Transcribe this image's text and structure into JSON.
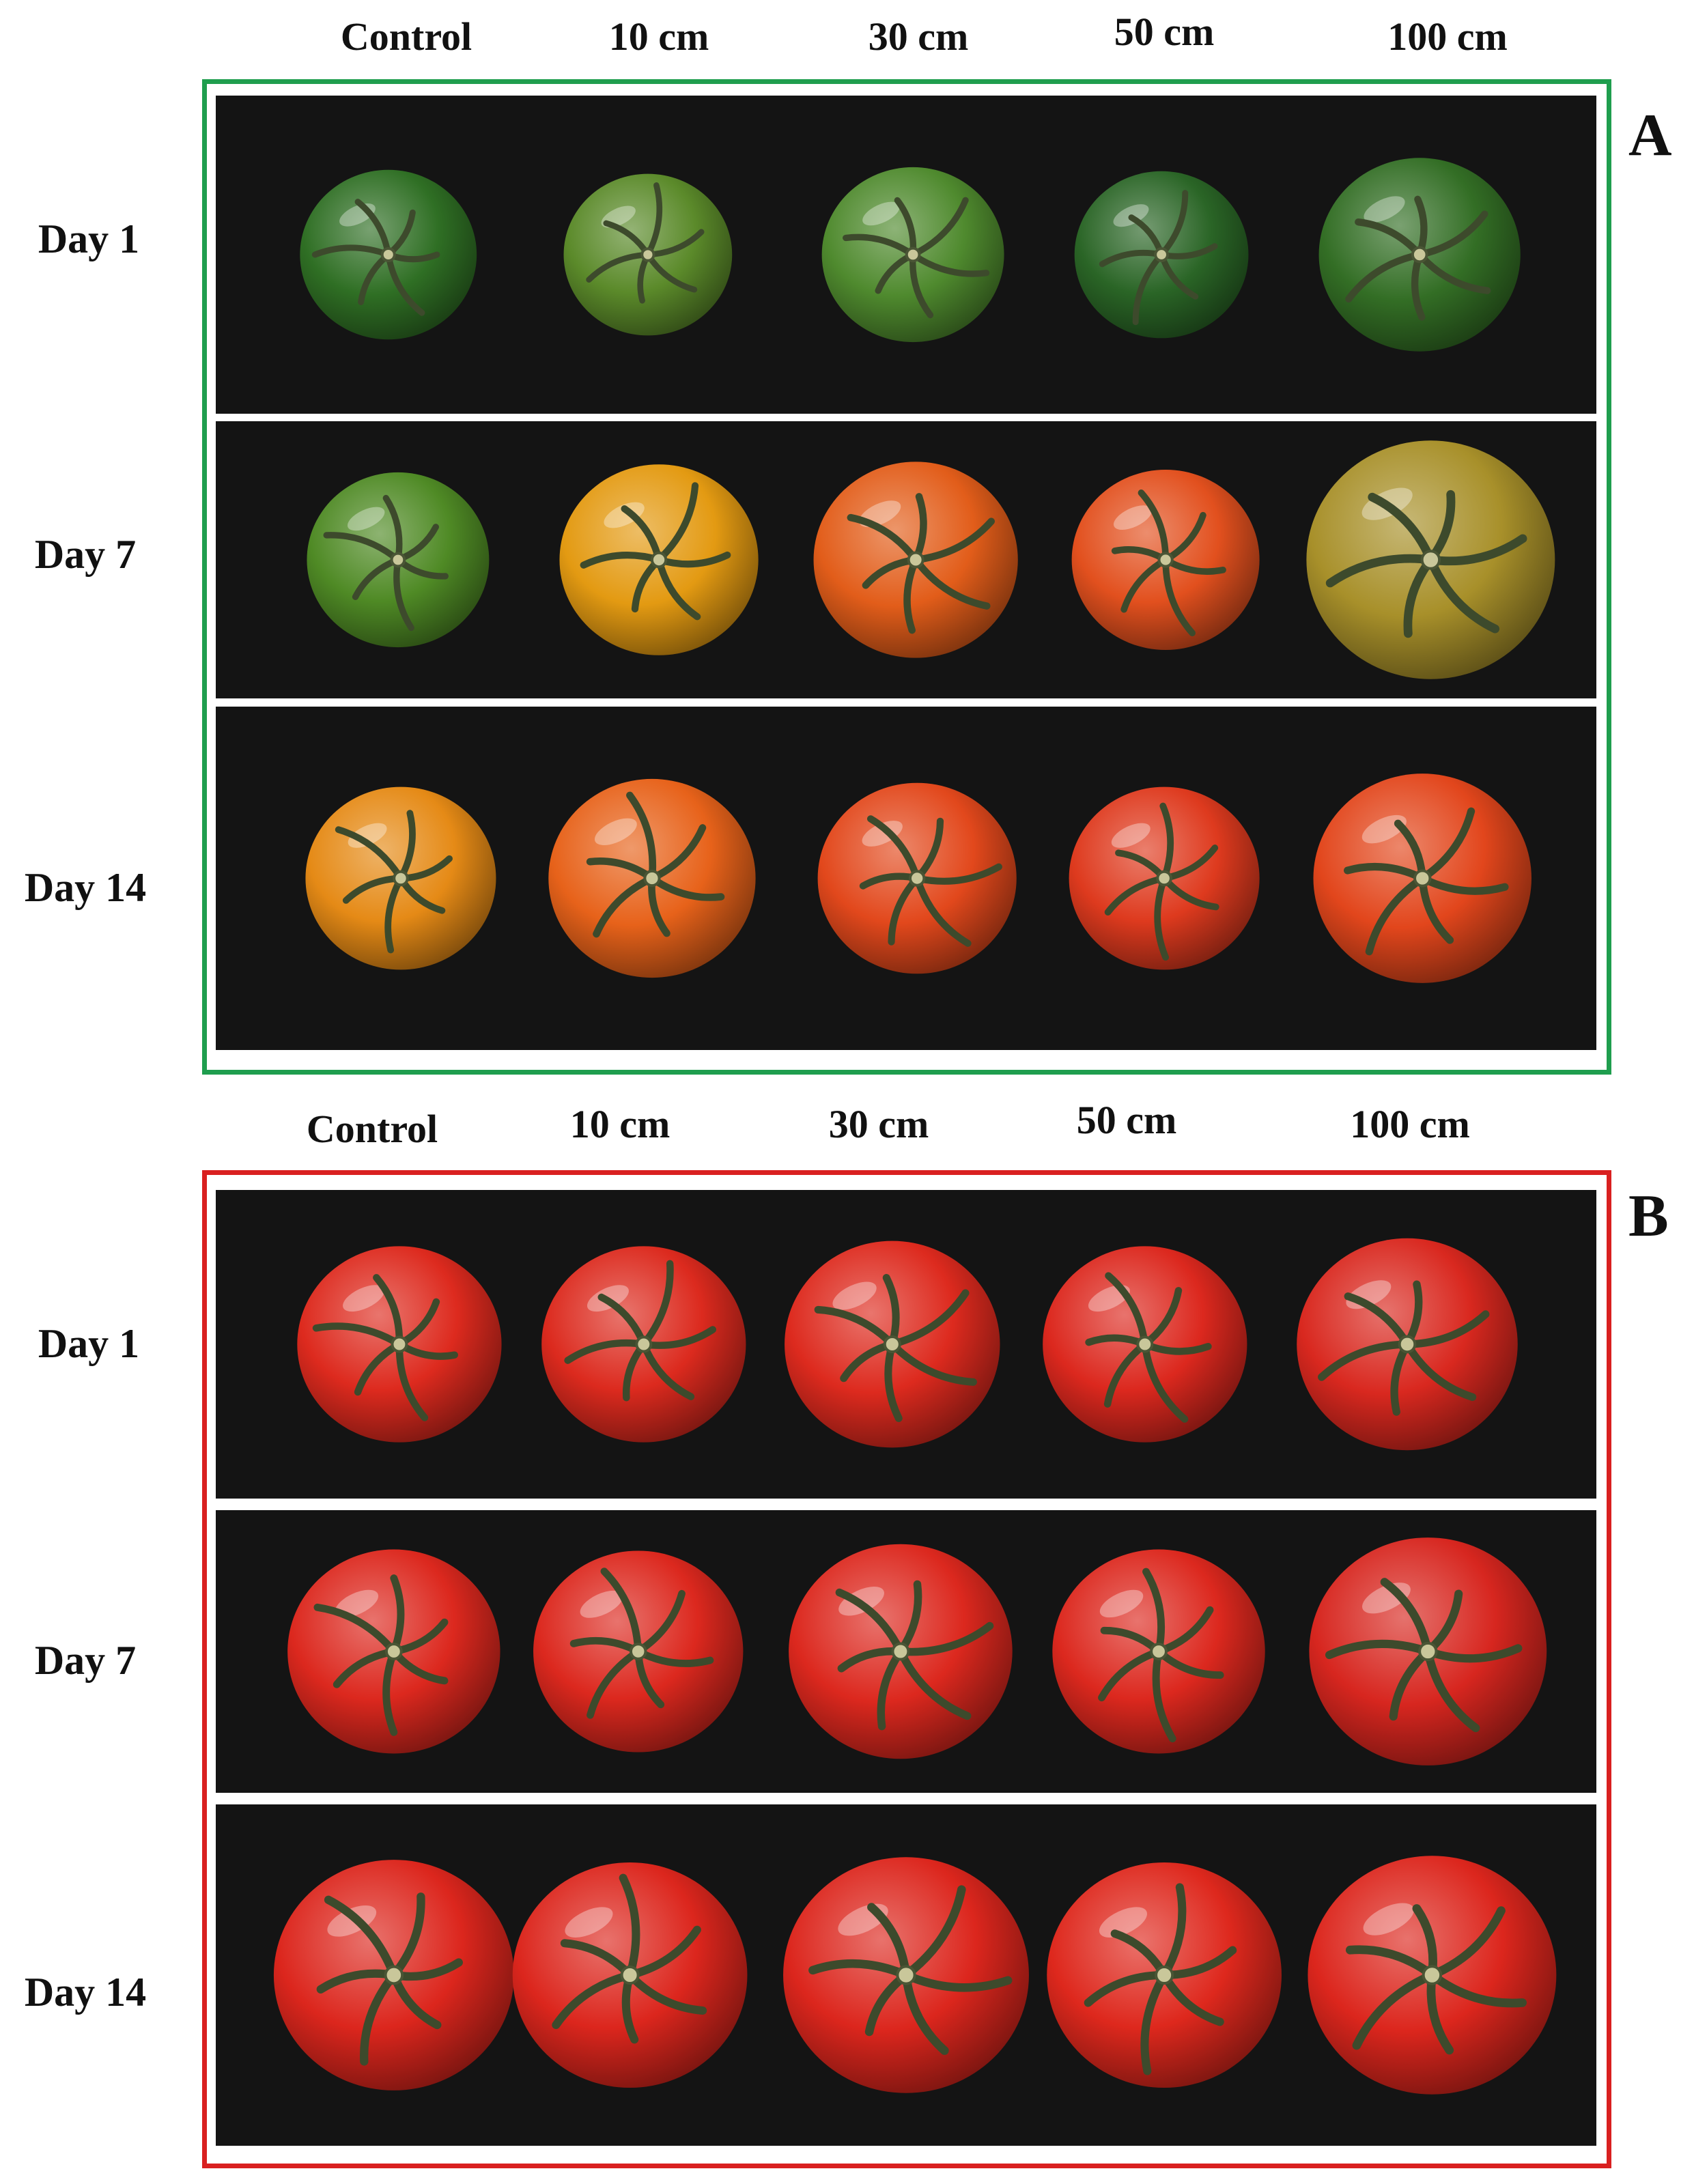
{
  "panels": [
    {
      "letter": "A",
      "frame_color": "#1f9e4e",
      "columns": [
        "Control",
        "10 cm",
        "30 cm",
        "50 cm",
        "100 cm"
      ],
      "rows": [
        {
          "label": "Day 1",
          "tomato_colors": [
            "#2f6f24",
            "#5b8a2a",
            "#4f8a2e",
            "#2a6526",
            "#336e25"
          ]
        },
        {
          "label": "Day 7",
          "tomato_colors": [
            "#4f8a25",
            "#e39a12",
            "#e25d1a",
            "#e2501e",
            "#a8902a"
          ]
        },
        {
          "label": "Day 14",
          "tomato_colors": [
            "#e58a16",
            "#e7621a",
            "#e2481c",
            "#de3a1e",
            "#e2461c"
          ]
        }
      ]
    },
    {
      "letter": "B",
      "frame_color": "#d92020",
      "columns": [
        "Control",
        "10 cm",
        "30 cm",
        "50 cm",
        "100 cm"
      ],
      "rows": [
        {
          "label": "Day 1",
          "tomato_colors": [
            "#dd2a1e",
            "#dc2a1e",
            "#dd2a1e",
            "#dc281e",
            "#d9281f"
          ]
        },
        {
          "label": "Day 7",
          "tomato_colors": [
            "#dc281e",
            "#dc281e",
            "#dc281e",
            "#dc281e",
            "#d7261f"
          ]
        },
        {
          "label": "Day 14",
          "tomato_colors": [
            "#dc261d",
            "#dc261d",
            "#dc261d",
            "#de281d",
            "#dc261d"
          ]
        }
      ]
    }
  ],
  "icons": {
    "tomato": "tomato-icon",
    "calyx": "calyx-icon"
  }
}
